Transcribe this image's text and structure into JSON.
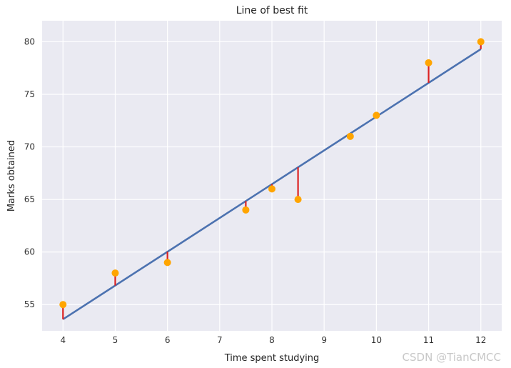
{
  "chart_data": {
    "type": "scatter",
    "title": "Line of best fit",
    "xlabel": "Time spent studying",
    "ylabel": "Marks obtained",
    "xlim": [
      3.6,
      12.4
    ],
    "ylim": [
      52.5,
      82
    ],
    "xticks": [
      4,
      5,
      6,
      7,
      8,
      9,
      10,
      11,
      12
    ],
    "yticks": [
      55,
      60,
      65,
      70,
      75,
      80
    ],
    "grid": true,
    "points": {
      "x": [
        4,
        5,
        6,
        7.5,
        8,
        8.5,
        9.5,
        10,
        11,
        12
      ],
      "y": [
        55,
        58,
        59,
        64,
        66,
        65,
        71,
        73,
        78,
        80
      ]
    },
    "fit_line": {
      "x": [
        4,
        12
      ],
      "y": [
        53.6,
        79.3
      ]
    },
    "colors": {
      "background": "#eaeaf2",
      "grid": "#ffffff",
      "points": "#ffa500",
      "fit_line": "#4c72b0",
      "residuals": "#dd2222"
    }
  },
  "watermark": "CSDN @TianCMCC"
}
